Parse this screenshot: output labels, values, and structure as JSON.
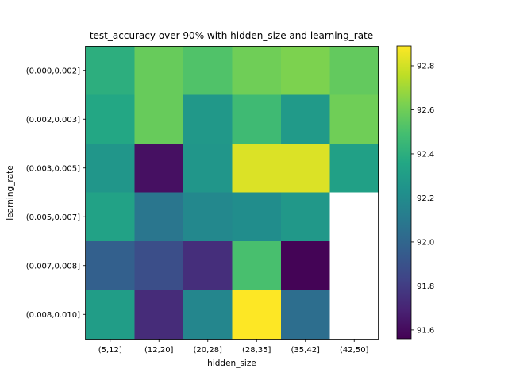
{
  "chart_data": {
    "type": "heatmap",
    "title": "test_accuracy over 90% with hidden_size and learning_rate",
    "xlabel": "hidden_size",
    "ylabel": "learning_rate",
    "x_categories": [
      "(5,12]",
      "(12,20]",
      "(20,28]",
      "(28,35]",
      "(35,42]",
      "(42,50]"
    ],
    "y_categories": [
      "(0.000,0.002]",
      "(0.002,0.003]",
      "(0.003,0.005]",
      "(0.005,0.007]",
      "(0.007,0.008]",
      "(0.008,0.010]"
    ],
    "values": [
      [
        92.4,
        92.58,
        92.52,
        92.6,
        92.63,
        92.57
      ],
      [
        92.36,
        92.58,
        92.27,
        92.47,
        92.28,
        92.6
      ],
      [
        92.26,
        91.62,
        92.26,
        92.82,
        92.82,
        92.32
      ],
      [
        92.33,
        92.08,
        92.18,
        92.21,
        92.27,
        null
      ],
      [
        91.97,
        91.88,
        91.74,
        92.5,
        91.57,
        null
      ],
      [
        92.3,
        91.73,
        92.17,
        92.89,
        92.04,
        null
      ]
    ],
    "colormap": "viridis",
    "colorbar": {
      "range": [
        91.56,
        92.89
      ],
      "ticks": [
        "91.6",
        "91.8",
        "92.0",
        "92.2",
        "92.4",
        "92.6",
        "92.8"
      ],
      "tick_values": [
        91.6,
        91.8,
        92.0,
        92.2,
        92.4,
        92.6,
        92.8
      ]
    },
    "missing_color": "#ffffff"
  }
}
